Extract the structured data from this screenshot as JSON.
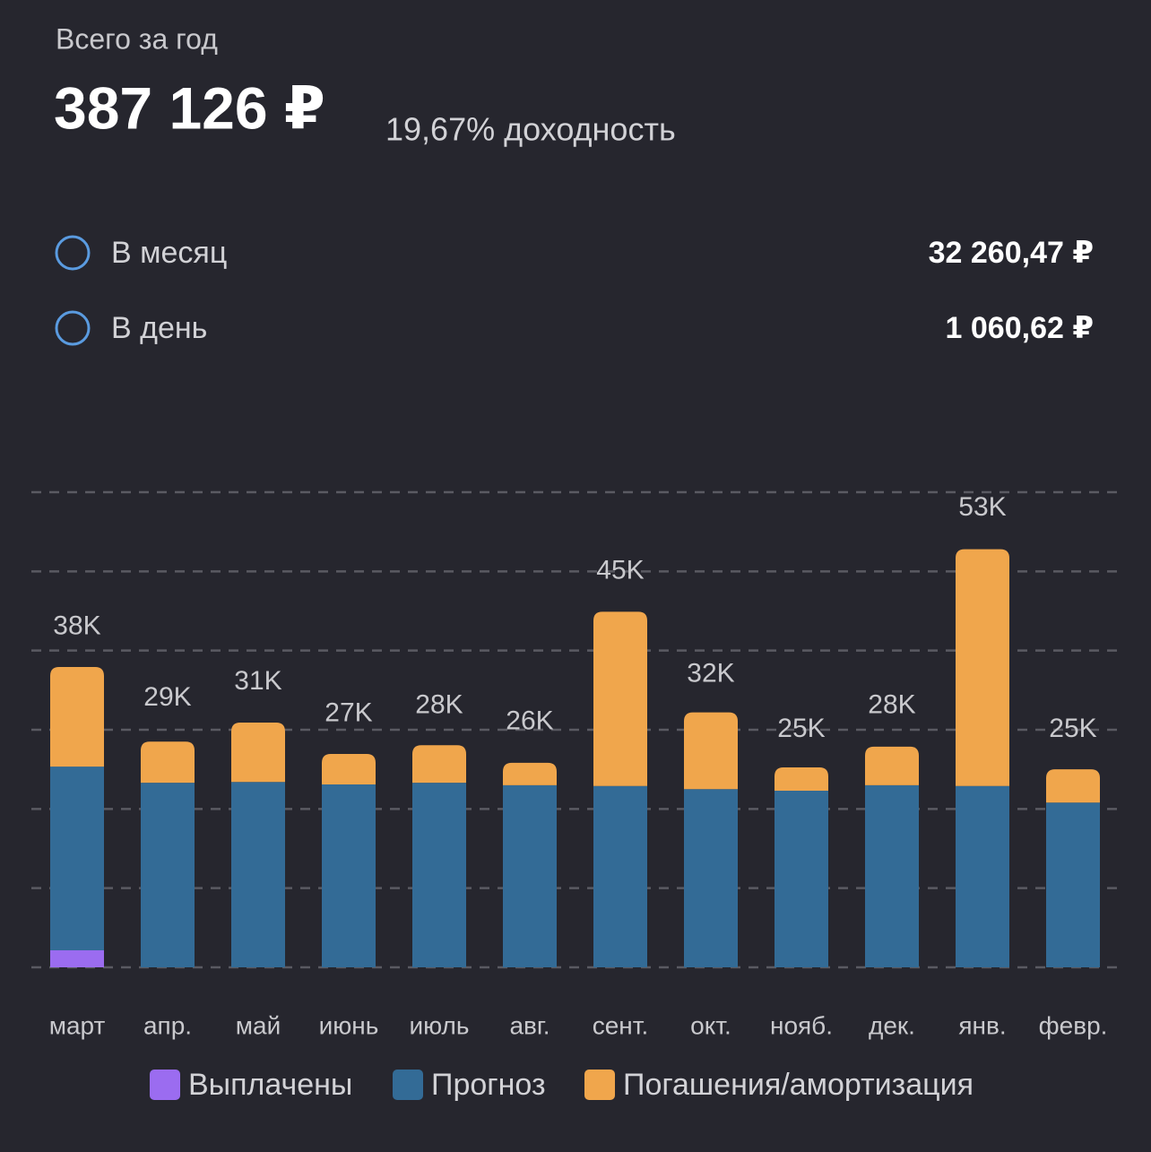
{
  "header": {
    "caption": "Всего за год",
    "total": "387 126 ₽",
    "yield": "19,67% доходность",
    "rows": [
      {
        "label": "В месяц",
        "value": "32 260,47 ₽"
      },
      {
        "label": "В день",
        "value": "1 060,62 ₽"
      }
    ]
  },
  "chart_data": {
    "type": "stacked_bar",
    "categories": [
      "март",
      "апр.",
      "май",
      "июнь",
      "июль",
      "авг.",
      "сент.",
      "окт.",
      "нояб.",
      "дек.",
      "янв.",
      "февр."
    ],
    "series": [
      {
        "name": "Выплачены",
        "color": "#9b6cf0",
        "values": [
          2150,
          0,
          0,
          0,
          0,
          0,
          0,
          0,
          0,
          0,
          0,
          0
        ]
      },
      {
        "name": "Прогноз",
        "color": "#336b96",
        "values": [
          23200,
          23300,
          23400,
          23100,
          23300,
          23000,
          22900,
          22500,
          22300,
          23000,
          22900,
          20800
        ]
      },
      {
        "name": "Погашения/амортизация",
        "color": "#f0a64c",
        "values": [
          12570,
          5200,
          7500,
          3850,
          4750,
          2830,
          22000,
          9700,
          2950,
          4870,
          29900,
          4200
        ]
      }
    ],
    "totals": {
      "values": [
        38000,
        29000,
        31000,
        27000,
        28000,
        26000,
        45000,
        32000,
        25000,
        28000,
        53000,
        25000
      ],
      "value_labels": [
        "38K",
        "29K",
        "31K",
        "27K",
        "28K",
        "26K",
        "45K",
        "32K",
        "25K",
        "28K",
        "53K",
        "25K"
      ]
    },
    "ylim": [
      0,
      60000
    ],
    "yticks": [
      0,
      10000,
      20000,
      30000,
      40000,
      50000,
      60000
    ],
    "grid": true
  }
}
